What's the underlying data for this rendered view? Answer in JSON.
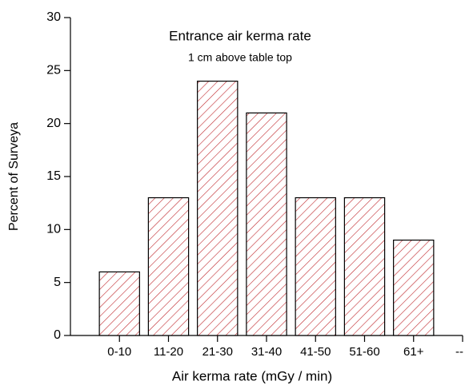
{
  "chart_data": {
    "type": "bar",
    "title": "Entrance air kerma rate",
    "subtitle": "1 cm above table top",
    "x_label": "Air kerma rate (mGy / min)",
    "y_label": "Percent of Surveya",
    "categories": [
      "0-10",
      "11-20",
      "21-30",
      "31-40",
      "41-50",
      "51-60",
      "61+",
      "--"
    ],
    "values": [
      6,
      13,
      24,
      21,
      13,
      13,
      9,
      null
    ],
    "color": "#c0282d",
    "ylim": [
      0,
      30
    ],
    "yticks": [
      0,
      5,
      10,
      15,
      20,
      25,
      30
    ],
    "grid": false
  }
}
